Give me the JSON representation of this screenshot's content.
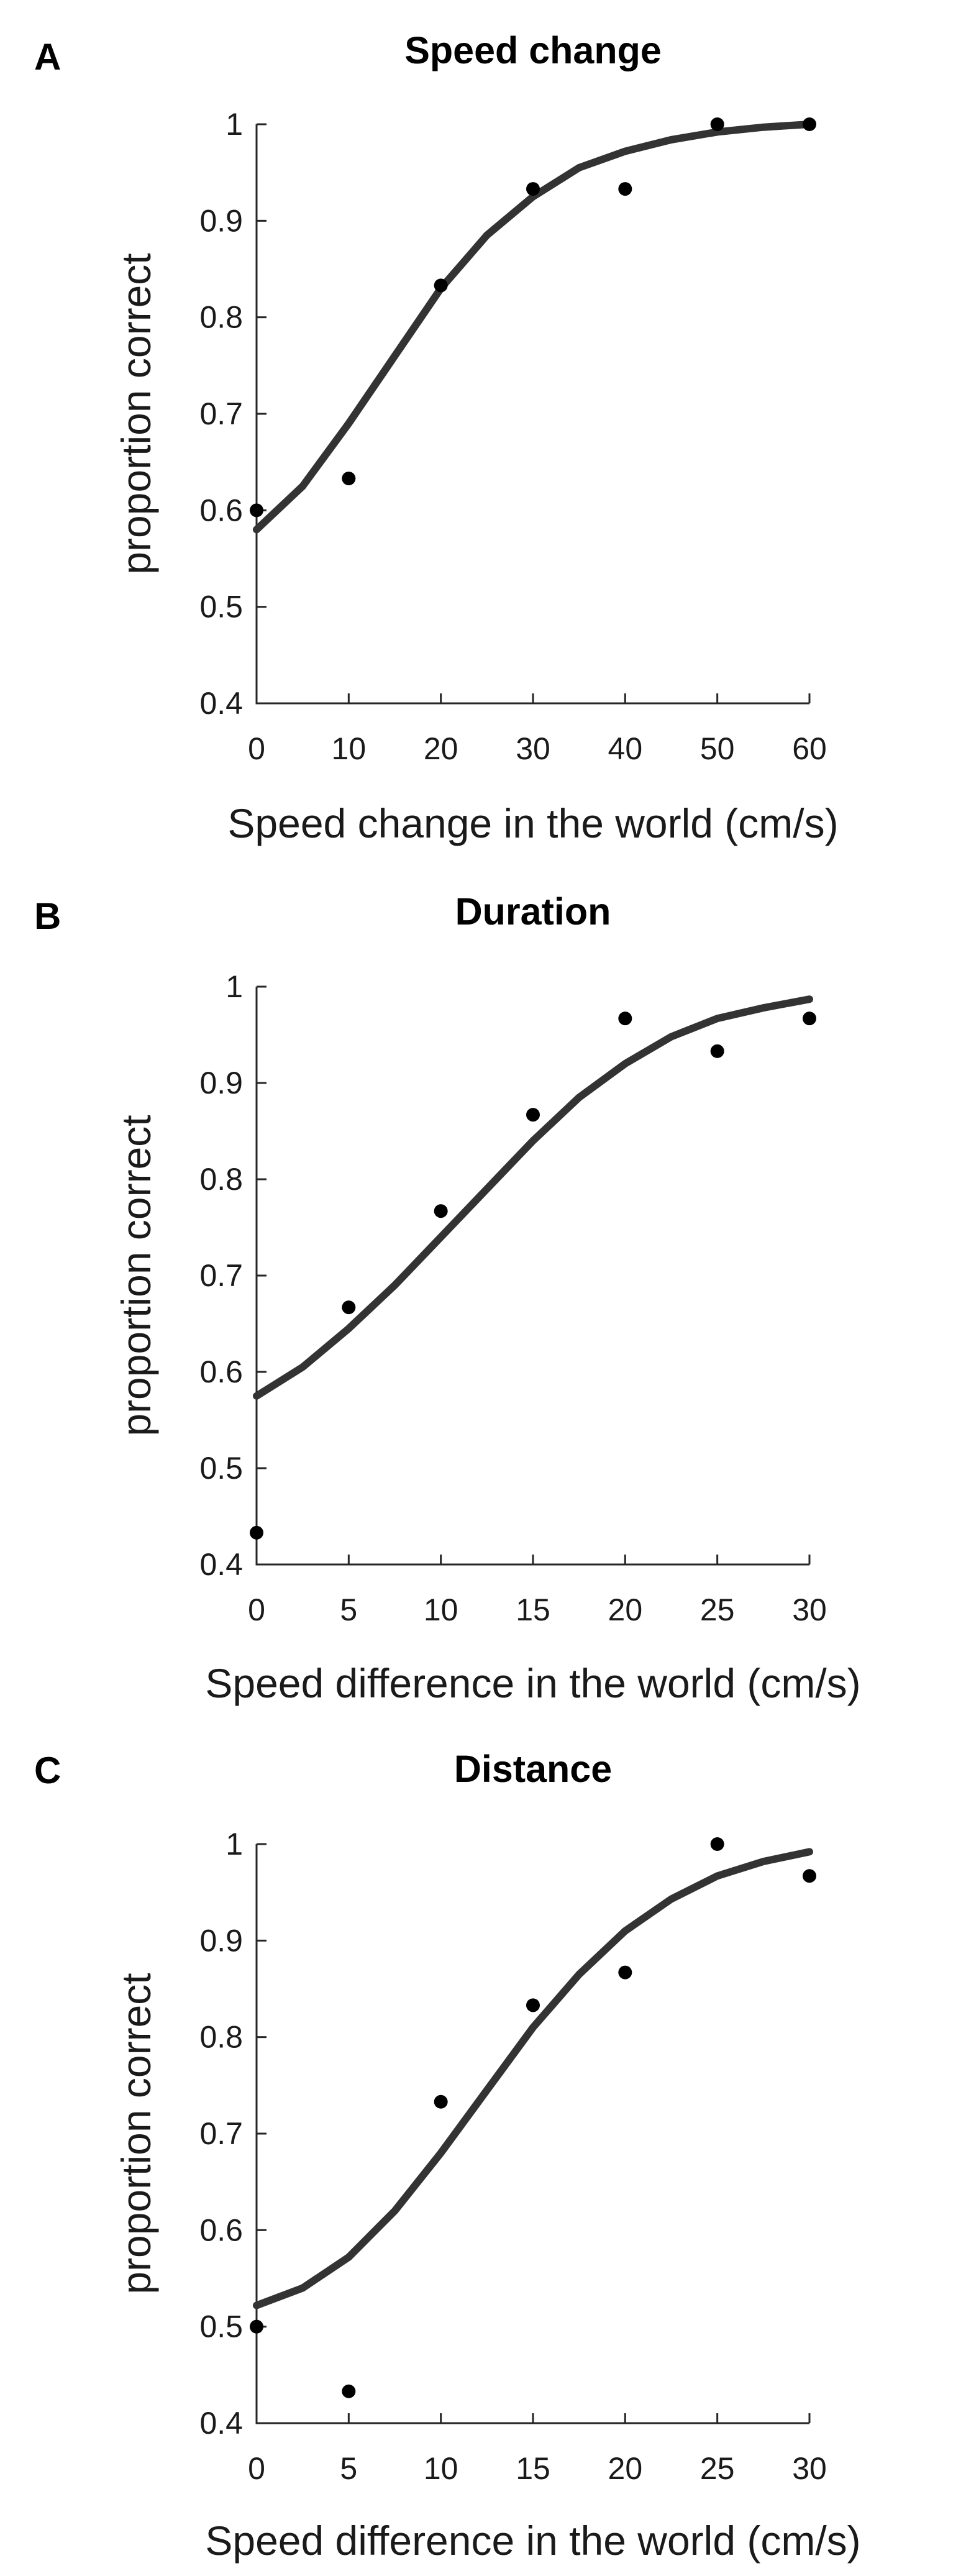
{
  "chart_data": [
    {
      "type": "scatter",
      "panel_label": "A",
      "title": "Speed change",
      "xlabel": "Speed change in the world (cm/s)",
      "ylabel": "proportion correct",
      "xlim": [
        0,
        60
      ],
      "ylim": [
        0.4,
        1.0
      ],
      "xticks": [
        0,
        10,
        20,
        30,
        40,
        50,
        60
      ],
      "yticks": [
        0.4,
        0.5,
        0.6,
        0.7,
        0.8,
        0.9,
        1
      ],
      "points": {
        "x": [
          0,
          10,
          20,
          30,
          40,
          50,
          60
        ],
        "y": [
          0.6,
          0.633,
          0.833,
          0.933,
          0.933,
          1.0,
          1.0
        ]
      },
      "fit": {
        "x": [
          0,
          5,
          10,
          15,
          20,
          25,
          30,
          35,
          40,
          45,
          50,
          55,
          60
        ],
        "y": [
          0.58,
          0.625,
          0.69,
          0.76,
          0.83,
          0.885,
          0.925,
          0.955,
          0.972,
          0.984,
          0.992,
          0.997,
          1.0
        ]
      }
    },
    {
      "type": "scatter",
      "panel_label": "B",
      "title": "Duration",
      "xlabel": "Speed difference in the world (cm/s)",
      "ylabel": "proportion correct",
      "xlim": [
        0,
        30
      ],
      "ylim": [
        0.4,
        1.0
      ],
      "xticks": [
        0,
        5,
        10,
        15,
        20,
        25,
        30
      ],
      "yticks": [
        0.4,
        0.5,
        0.6,
        0.7,
        0.8,
        0.9,
        1
      ],
      "points": {
        "x": [
          0,
          5,
          10,
          15,
          20,
          25,
          30
        ],
        "y": [
          0.433,
          0.667,
          0.767,
          0.867,
          0.967,
          0.933,
          0.967
        ]
      },
      "fit": {
        "x": [
          0,
          2.5,
          5,
          7.5,
          10,
          12.5,
          15,
          17.5,
          20,
          22.5,
          25,
          27.5,
          30
        ],
        "y": [
          0.575,
          0.605,
          0.645,
          0.69,
          0.74,
          0.79,
          0.84,
          0.885,
          0.92,
          0.948,
          0.967,
          0.978,
          0.987
        ]
      }
    },
    {
      "type": "scatter",
      "panel_label": "C",
      "title": "Distance",
      "xlabel": "Speed difference in the world (cm/s)",
      "ylabel": "proportion correct",
      "xlim": [
        0,
        30
      ],
      "ylim": [
        0.4,
        1.0
      ],
      "xticks": [
        0,
        5,
        10,
        15,
        20,
        25,
        30
      ],
      "yticks": [
        0.4,
        0.5,
        0.6,
        0.7,
        0.8,
        0.9,
        1
      ],
      "points": {
        "x": [
          0,
          5,
          10,
          15,
          20,
          25,
          30
        ],
        "y": [
          0.5,
          0.433,
          0.733,
          0.833,
          0.867,
          1.0,
          0.967
        ]
      },
      "fit": {
        "x": [
          0,
          2.5,
          5,
          7.5,
          10,
          12.5,
          15,
          17.5,
          20,
          22.5,
          25,
          27.5,
          30
        ],
        "y": [
          0.522,
          0.54,
          0.572,
          0.62,
          0.68,
          0.745,
          0.81,
          0.865,
          0.91,
          0.943,
          0.967,
          0.982,
          0.992
        ]
      }
    }
  ]
}
